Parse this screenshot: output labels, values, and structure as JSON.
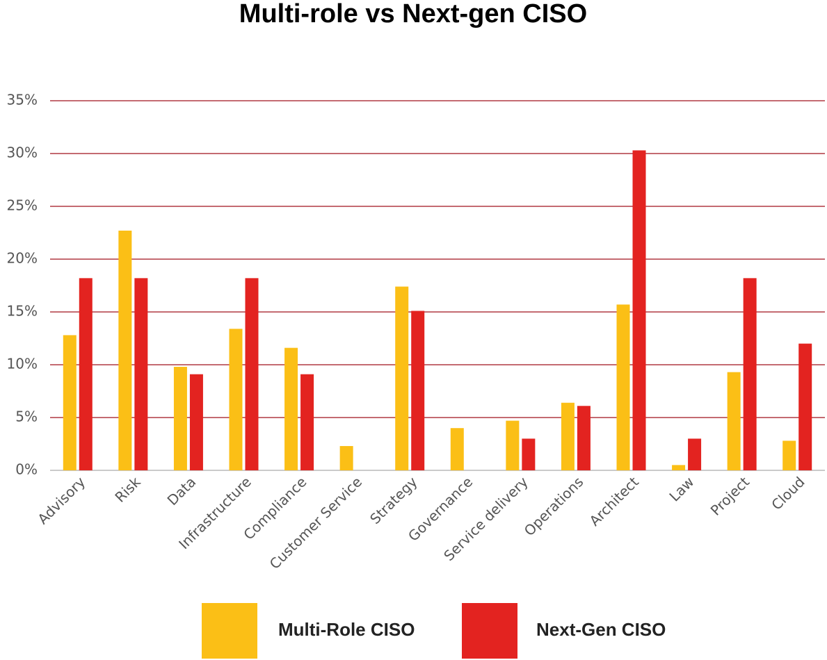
{
  "chart_data": {
    "type": "bar",
    "title": "Multi-role vs Next-gen CISO",
    "categories": [
      "Advisory",
      "Risk",
      "Data",
      "Infrastructure",
      "Compliance",
      "Customer Service",
      "Strategy",
      "Governance",
      "Service delivery",
      "Operations",
      "Architect",
      "Law",
      "Project",
      "Cloud"
    ],
    "series": [
      {
        "name": "Multi-Role CISO",
        "color": "#fbbf16",
        "values": [
          12.8,
          22.7,
          9.8,
          13.4,
          11.6,
          2.3,
          17.4,
          4.0,
          4.7,
          6.4,
          15.7,
          0.5,
          9.3,
          2.8
        ]
      },
      {
        "name": "Next-Gen CISO",
        "color": "#e32320",
        "values": [
          18.2,
          18.2,
          9.1,
          18.2,
          9.1,
          0,
          15.1,
          0,
          3.0,
          6.1,
          30.3,
          3.0,
          18.2,
          12.0
        ]
      }
    ],
    "ylim": [
      0,
      35
    ],
    "yticks": [
      {
        "value": 0,
        "label": "0%"
      },
      {
        "value": 5,
        "label": "5%"
      },
      {
        "value": 10,
        "label": "10%"
      },
      {
        "value": 15,
        "label": "15%"
      },
      {
        "value": 20,
        "label": "20%"
      },
      {
        "value": 25,
        "label": "25%"
      },
      {
        "value": 30,
        "label": "30%"
      },
      {
        "value": 35,
        "label": "35%"
      }
    ],
    "grid": true,
    "grid_color": "#a0101c",
    "legend": "bottom"
  }
}
